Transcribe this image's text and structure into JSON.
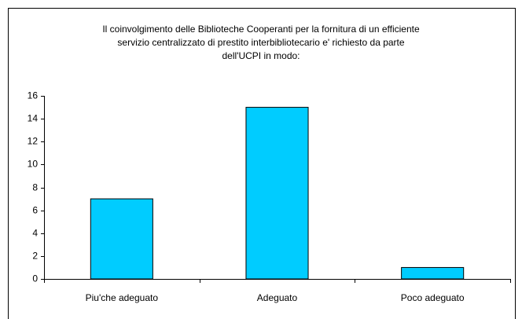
{
  "chart_data": {
    "type": "bar",
    "title": [
      "Il coinvolgimento delle Biblioteche Cooperanti per la fornitura di un efficiente",
      "servizio centralizzato di prestito interbibliotecario e' richiesto da parte",
      "dell'UCPI in modo:"
    ],
    "categories": [
      "Piu'che adeguato",
      "Adeguato",
      "Poco adeguato"
    ],
    "values": [
      7,
      15,
      1
    ],
    "color": "#00ccff",
    "ylim": [
      0,
      16
    ],
    "yticks": [
      0,
      2,
      4,
      6,
      8,
      10,
      12,
      14,
      16
    ],
    "grid": false
  }
}
